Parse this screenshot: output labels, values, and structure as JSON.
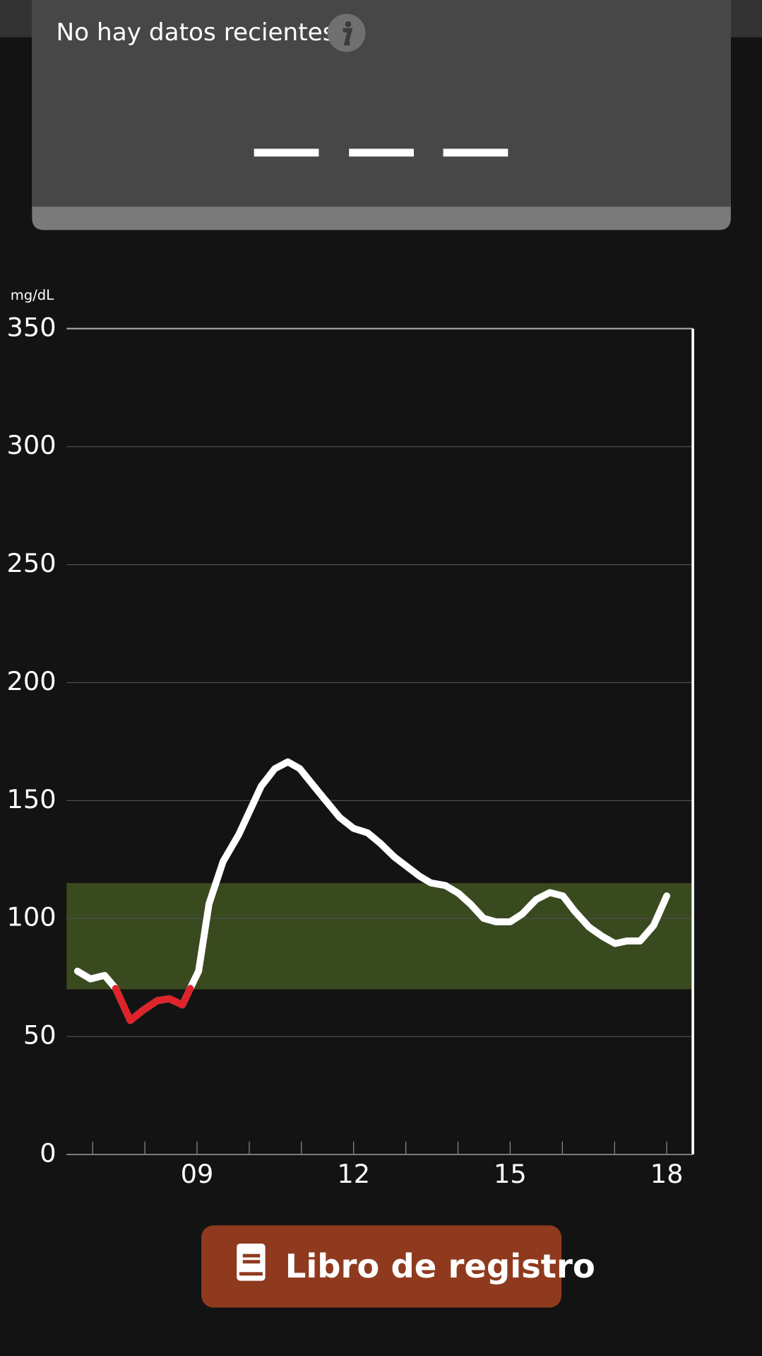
{
  "header": {
    "status_text": "No hay datos recientes"
  },
  "chart_data": {
    "type": "line",
    "y_unit_label": "mg/dL",
    "x": [
      6.71,
      6.96,
      7.23,
      7.44,
      7.72,
      7.97,
      8.24,
      8.47,
      8.72,
      8.87,
      9.03,
      9.23,
      9.5,
      9.8,
      10.23,
      10.49,
      10.74,
      10.97,
      11.32,
      11.73,
      12.0,
      12.27,
      12.51,
      12.78,
      13.26,
      13.48,
      13.76,
      14.01,
      14.25,
      14.49,
      14.73,
      15.0,
      15.23,
      15.5,
      15.76,
      16.01,
      16.24,
      16.51,
      16.77,
      17.01,
      17.24,
      17.49,
      17.75,
      18.0
    ],
    "series": [
      {
        "color": "#ffffff",
        "low_color": "#e0222a",
        "values": [
          77.7,
          74.4,
          75.9,
          70.4,
          56.8,
          61.2,
          65.2,
          66.0,
          63.4,
          70.4,
          77.7,
          106.3,
          124.2,
          135.6,
          156.1,
          163.5,
          166.4,
          163.5,
          153.9,
          142.9,
          138.2,
          136.3,
          131.9,
          126.1,
          118.0,
          115.1,
          114.0,
          110.7,
          105.9,
          100.1,
          98.6,
          98.6,
          101.9,
          108.1,
          111.0,
          109.6,
          103.0,
          96.4,
          92.4,
          89.4,
          90.5,
          90.5,
          97.1,
          109.6
        ]
      }
    ],
    "target_range": [
      70,
      115
    ],
    "target_color": "#3a4a1f",
    "xlim": [
      6.5,
      18.5
    ],
    "xticks": [
      {
        "value": 9,
        "label": "09"
      },
      12,
      15,
      18
    ],
    "minor_xticks": [
      7,
      8,
      9,
      10,
      11,
      12,
      13,
      14,
      15,
      16,
      17,
      18
    ],
    "ylim": [
      0,
      350
    ],
    "yticks": [
      0,
      50,
      100,
      150,
      200,
      250,
      300,
      350
    ],
    "grid": true
  },
  "button": {
    "label": "Libro de registro"
  }
}
